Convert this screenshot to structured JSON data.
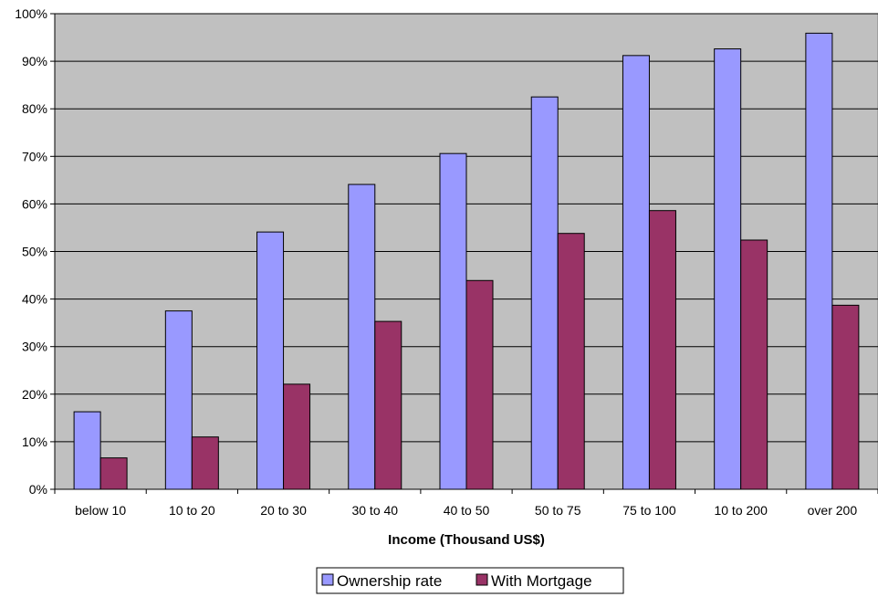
{
  "chart_data": {
    "type": "bar",
    "title": "",
    "xlabel": "Income (Thousand US$)",
    "ylabel": "",
    "categories": [
      "below 10",
      "10 to 20",
      "20 to 30",
      "30 to 40",
      "40 to 50",
      "50 to 75",
      "75 to 100",
      "10 to 200",
      "over 200"
    ],
    "series": [
      {
        "name": "Ownership rate",
        "color": "#9999ff",
        "values": [
          16.3,
          37.5,
          54.1,
          64.1,
          70.6,
          82.5,
          91.2,
          92.6,
          95.9
        ]
      },
      {
        "name": "With Mortgage",
        "color": "#993366",
        "values": [
          6.6,
          11.0,
          22.1,
          35.3,
          43.9,
          53.8,
          58.6,
          52.4,
          38.7
        ]
      }
    ],
    "ylim": [
      0,
      100
    ],
    "yticks": [
      0,
      10,
      20,
      30,
      40,
      50,
      60,
      70,
      80,
      90,
      100
    ],
    "ytick_format": "{v}%",
    "grid": true,
    "plot_background": "#c0c0c0",
    "legend_position": "bottom"
  }
}
